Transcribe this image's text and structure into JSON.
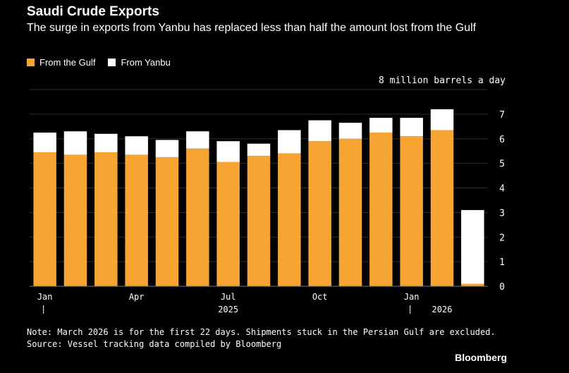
{
  "title": "Saudi Crude Exports",
  "subtitle": "The surge in exports from Yanbu has replaced less than half the amount lost from the Gulf",
  "legend": {
    "gulf_label": "From the Gulf",
    "yanbu_label": "From Yanbu"
  },
  "unit_label": "8 million barrels a day",
  "note": "Note: March 2026 is for the first 22 days. Shipments stuck in the Persian Gulf are excluded.",
  "source": "Source: Vessel tracking data compiled by Bloomberg",
  "brand": "Bloomberg",
  "colors": {
    "gulf": "#f7a532",
    "yanbu": "#ffffff",
    "background": "#000000",
    "grid": "#2f2f2f"
  },
  "chart_data": {
    "type": "bar",
    "stacked": true,
    "categories": [
      "Jan 2025",
      "Feb 2025",
      "Mar 2025",
      "Apr 2025",
      "May 2025",
      "Jun 2025",
      "Jul 2025",
      "Aug 2025",
      "Sep 2025",
      "Oct 2025",
      "Nov 2025",
      "Dec 2025",
      "Jan 2026",
      "Feb 2026",
      "Mar 2026"
    ],
    "x_tick_labels": [
      {
        "label": "Jan",
        "index": 0
      },
      {
        "label": "Apr",
        "index": 3
      },
      {
        "label": "Jul",
        "index": 6
      },
      {
        "label": "Oct",
        "index": 9
      },
      {
        "label": "Jan",
        "index": 12
      }
    ],
    "year_labels": [
      {
        "label": "2025",
        "index": 6
      },
      {
        "label": "2026",
        "index": 13
      }
    ],
    "year_separators": [
      0,
      12
    ],
    "series": [
      {
        "name": "From the Gulf",
        "values": [
          5.45,
          5.35,
          5.45,
          5.35,
          5.25,
          5.6,
          5.05,
          5.3,
          5.4,
          5.9,
          6.0,
          6.25,
          6.1,
          6.35,
          0.1
        ]
      },
      {
        "name": "From Yanbu",
        "values": [
          0.8,
          0.95,
          0.75,
          0.75,
          0.7,
          0.7,
          0.85,
          0.5,
          0.95,
          0.85,
          0.65,
          0.6,
          0.75,
          0.85,
          3.0
        ]
      }
    ],
    "ylim": [
      0,
      8
    ],
    "y_ticks": [
      0,
      1,
      2,
      3,
      4,
      5,
      6,
      7
    ],
    "ylabel": "8 million barrels a day",
    "grid": true,
    "legend_position": "top-left"
  }
}
